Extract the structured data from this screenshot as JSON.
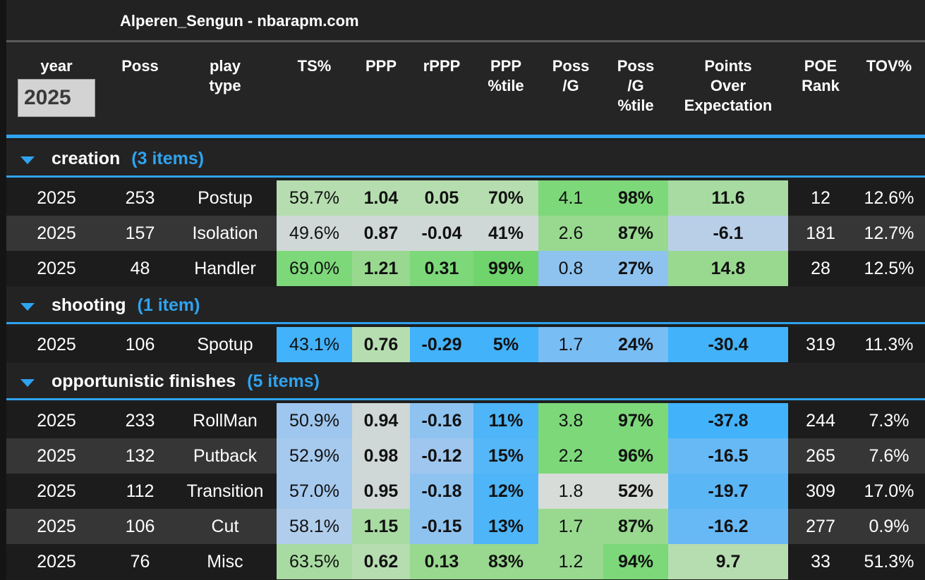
{
  "title": "Alperen_Sengun - nbarapm.com",
  "headers": {
    "year": "year",
    "poss": "Poss",
    "play_type_1": "play",
    "play_type_2": "type",
    "ts": "TS%",
    "ppp": "PPP",
    "rppp": "rPPP",
    "ppp_pct_1": "PPP",
    "ppp_pct_2": "%tile",
    "possg_1": "Poss",
    "possg_2": "/G",
    "possg_pct_1": "Poss",
    "possg_pct_2": "/G",
    "possg_pct_3": "%tile",
    "poe_1": "Points",
    "poe_2": "Over",
    "poe_3": "Expectation",
    "poe_rank_1": "POE",
    "poe_rank_2": "Rank",
    "tov": "TOV%"
  },
  "year_filter": {
    "value": "2025"
  },
  "colors": {
    "accent": "#2fa3ef",
    "green_strong": "#7dd87a",
    "green_mid": "#98d98f",
    "green_light": "#b6ddb0",
    "neutral": "#cfd8d6",
    "blue_light": "#a6c9ee",
    "blue_mid": "#79bdf5",
    "blue_strong": "#42b2fa"
  },
  "groups": [
    {
      "name": "creation",
      "count": "(3 items)",
      "rows": [
        {
          "year": "2025",
          "poss": "253",
          "play": "Postup",
          "ts": "59.7%",
          "ppp": "1.04",
          "rppp": "0.05",
          "ppp_pct": "70%",
          "possg": "4.1",
          "possg_pct": "98%",
          "poe": "11.6",
          "poe_rank": "12",
          "tov": "12.6%"
        },
        {
          "year": "2025",
          "poss": "157",
          "play": "Isolation",
          "ts": "49.6%",
          "ppp": "0.87",
          "rppp": "-0.04",
          "ppp_pct": "41%",
          "possg": "2.6",
          "possg_pct": "87%",
          "poe": "-6.1",
          "poe_rank": "181",
          "tov": "12.7%"
        },
        {
          "year": "2025",
          "poss": "48",
          "play": "Handler",
          "ts": "69.0%",
          "ppp": "1.21",
          "rppp": "0.31",
          "ppp_pct": "99%",
          "possg": "0.8",
          "possg_pct": "27%",
          "poe": "14.8",
          "poe_rank": "28",
          "tov": "12.5%"
        }
      ]
    },
    {
      "name": "shooting",
      "count": "(1 item)",
      "rows": [
        {
          "year": "2025",
          "poss": "106",
          "play": "Spotup",
          "ts": "43.1%",
          "ppp": "0.76",
          "rppp": "-0.29",
          "ppp_pct": "5%",
          "possg": "1.7",
          "possg_pct": "24%",
          "poe": "-30.4",
          "poe_rank": "319",
          "tov": "11.3%"
        }
      ]
    },
    {
      "name": "opportunistic finishes",
      "count": "(5 items)",
      "rows": [
        {
          "year": "2025",
          "poss": "233",
          "play": "RollMan",
          "ts": "50.9%",
          "ppp": "0.94",
          "rppp": "-0.16",
          "ppp_pct": "11%",
          "possg": "3.8",
          "possg_pct": "97%",
          "poe": "-37.8",
          "poe_rank": "244",
          "tov": "7.3%"
        },
        {
          "year": "2025",
          "poss": "132",
          "play": "Putback",
          "ts": "52.9%",
          "ppp": "0.98",
          "rppp": "-0.12",
          "ppp_pct": "15%",
          "possg": "2.2",
          "possg_pct": "96%",
          "poe": "-16.5",
          "poe_rank": "265",
          "tov": "7.6%"
        },
        {
          "year": "2025",
          "poss": "112",
          "play": "Transition",
          "ts": "57.0%",
          "ppp": "0.95",
          "rppp": "-0.18",
          "ppp_pct": "12%",
          "possg": "1.8",
          "possg_pct": "52%",
          "poe": "-19.7",
          "poe_rank": "309",
          "tov": "17.0%"
        },
        {
          "year": "2025",
          "poss": "106",
          "play": "Cut",
          "ts": "58.1%",
          "ppp": "1.15",
          "rppp": "-0.15",
          "ppp_pct": "13%",
          "possg": "1.7",
          "possg_pct": "87%",
          "poe": "-16.2",
          "poe_rank": "277",
          "tov": "0.9%"
        },
        {
          "year": "2025",
          "poss": "76",
          "play": "Misc",
          "ts": "63.5%",
          "ppp": "0.62",
          "rppp": "0.13",
          "ppp_pct": "83%",
          "possg": "1.2",
          "possg_pct": "94%",
          "poe": "9.7",
          "poe_rank": "33",
          "tov": "51.3%"
        }
      ]
    }
  ]
}
